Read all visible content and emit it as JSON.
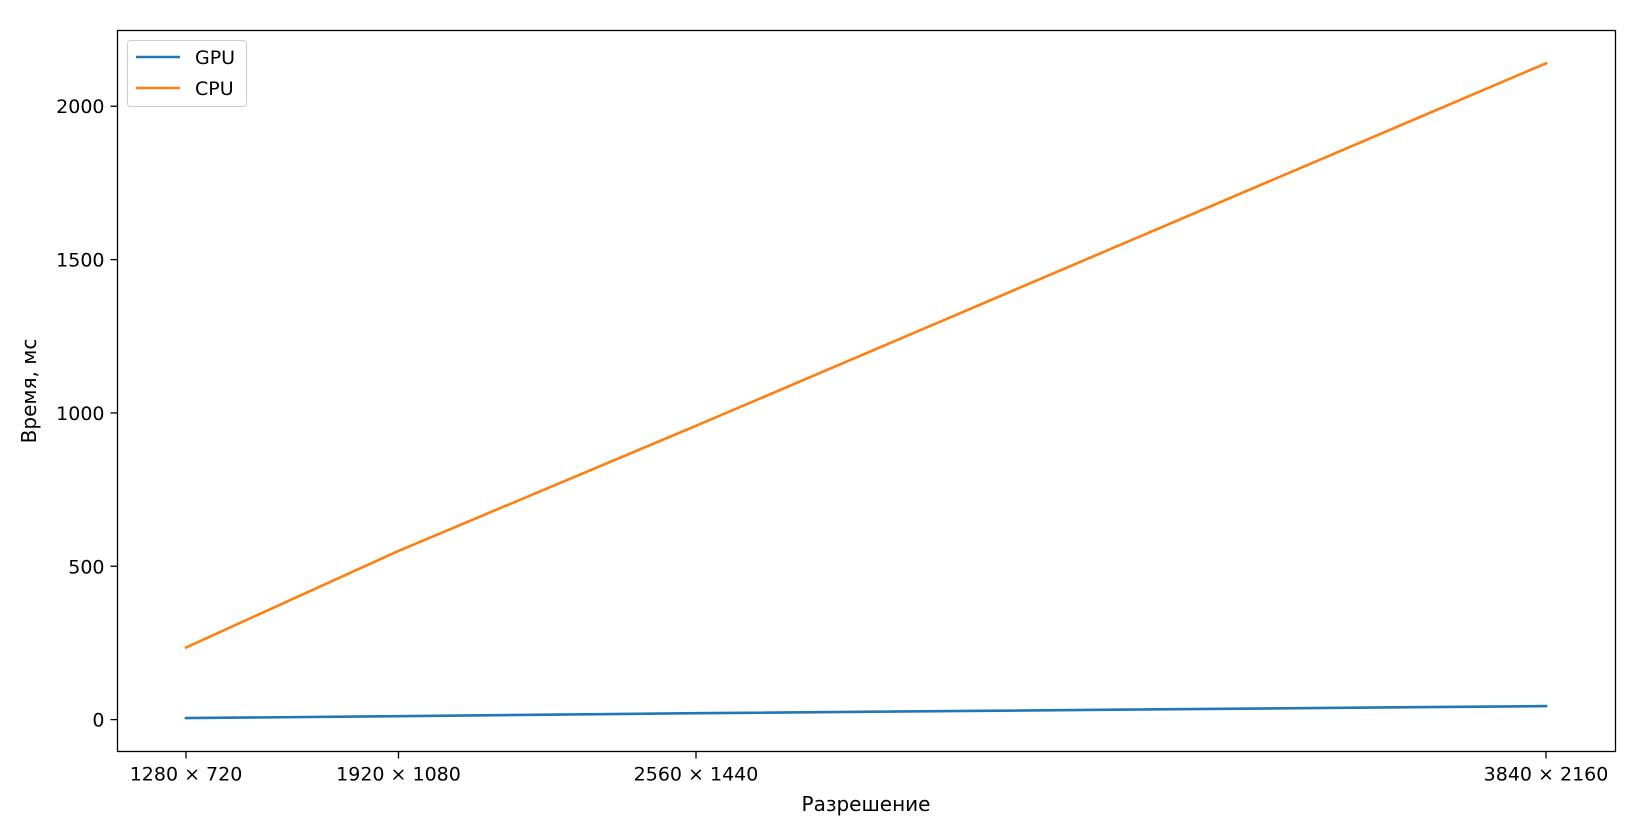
{
  "chart_data": {
    "type": "line",
    "categories": [
      "1280 × 720",
      "1920 × 1080",
      "2560 × 1440",
      "3840 × 2160"
    ],
    "x": [
      921600,
      2073600,
      3686400,
      8294400
    ],
    "series": [
      {
        "name": "GPU",
        "color": "#1f77b4",
        "values": [
          5,
          11,
          21,
          44
        ]
      },
      {
        "name": "CPU",
        "color": "#ff7f0e",
        "values": [
          235,
          550,
          958,
          2140
        ]
      }
    ],
    "title": "",
    "xlabel": "Разрешение",
    "ylabel": "Время, мс",
    "yticks": [
      0,
      500,
      1000,
      1500,
      2000
    ],
    "ylim": [
      -104,
      2247
    ],
    "legend_position": "top-left",
    "grid": false
  }
}
